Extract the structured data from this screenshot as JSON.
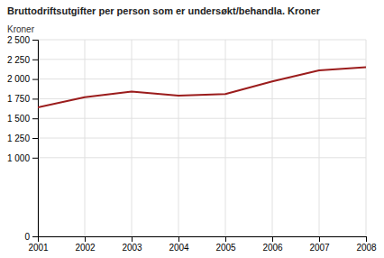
{
  "chart_data": {
    "type": "line",
    "title": "Bruttodriftsutgifter per person som er undersøkt/behandla. Kroner",
    "ylabel": "Kroner",
    "x": [
      2001,
      2002,
      2003,
      2004,
      2005,
      2006,
      2007,
      2008
    ],
    "values": [
      1640,
      1770,
      1840,
      1790,
      1810,
      1970,
      2110,
      2150
    ],
    "color": "#9b1c1c",
    "xlim": [
      2001,
      2008
    ],
    "xticks": [
      2001,
      2002,
      2003,
      2004,
      2005,
      2006,
      2007,
      2008
    ],
    "ylim": [
      0,
      2500
    ],
    "yticks": [
      0,
      {
        "value": 1000,
        "label": "1 000"
      },
      {
        "value": 1250,
        "label": "1 250"
      },
      {
        "value": 1500,
        "label": "1 500"
      },
      {
        "value": 1750,
        "label": "1 750"
      },
      {
        "value": 2000,
        "label": "2 000"
      },
      {
        "value": 2250,
        "label": "2 250"
      },
      {
        "value": 2500,
        "label": "2 500"
      }
    ],
    "grid": true
  }
}
